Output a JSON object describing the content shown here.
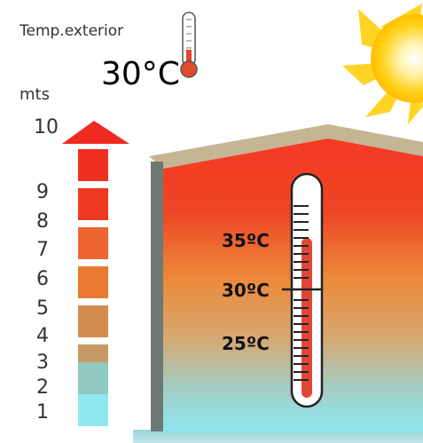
{
  "header": {
    "label": "Temp.exterior",
    "outside_temp": "30°C"
  },
  "height_scale": {
    "unit": "mts",
    "ticks": [
      "1",
      "2",
      "3",
      "4",
      "5",
      "6",
      "7",
      "8",
      "9",
      "10"
    ]
  },
  "thermometer": {
    "labels": [
      "35ºC",
      "30ºC",
      "25ºC"
    ]
  },
  "colors": {
    "hot": "#ef2f22",
    "warm": "#ea7a33",
    "mid": "#c69a66",
    "cool": "#8fc9bf",
    "cold": "#8fe7ef",
    "wall": "#6c7a73",
    "roof": "#c5b595",
    "sun": "#ffd21a"
  },
  "icons": {
    "sun": "sun-icon",
    "small_thermometer": "thermometer-icon",
    "arrow": "arrow-up-icon"
  }
}
